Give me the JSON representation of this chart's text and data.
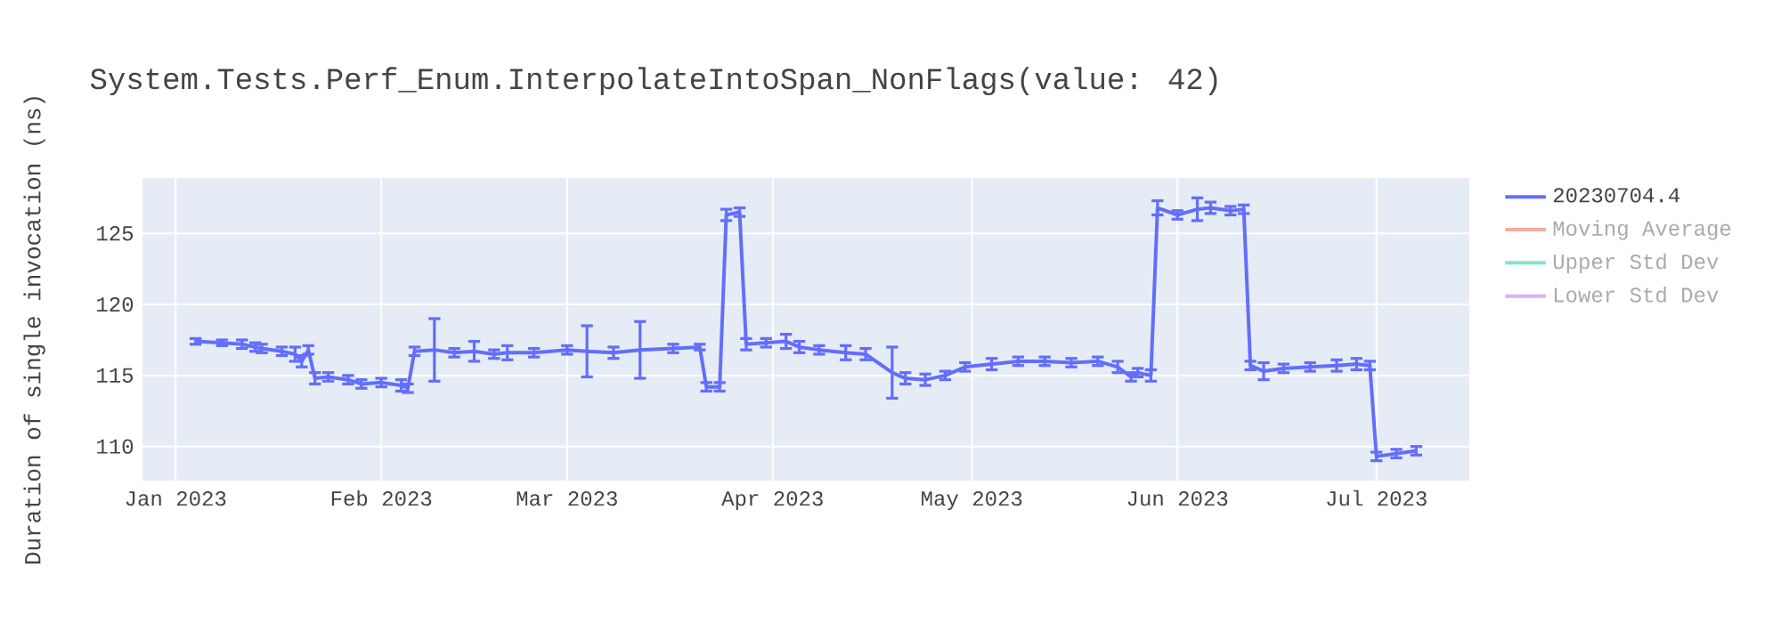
{
  "chart_data": {
    "type": "line",
    "title": "System.Tests.Perf_Enum.InterpolateIntoSpan_NonFlags(value: 42)",
    "ylabel": "Duration of single invocation (ns)",
    "x": [
      "2023-01-04",
      "2023-01-08",
      "2023-01-11",
      "2023-01-13",
      "2023-01-14",
      "2023-01-17",
      "2023-01-19",
      "2023-01-20",
      "2023-01-21",
      "2023-01-22",
      "2023-01-24",
      "2023-01-27",
      "2023-01-29",
      "2023-02-01",
      "2023-02-04",
      "2023-02-05",
      "2023-02-06",
      "2023-02-09",
      "2023-02-12",
      "2023-02-15",
      "2023-02-18",
      "2023-02-20",
      "2023-02-24",
      "2023-03-01",
      "2023-03-04",
      "2023-03-08",
      "2023-03-12",
      "2023-03-17",
      "2023-03-21",
      "2023-03-22",
      "2023-03-24",
      "2023-03-25",
      "2023-03-27",
      "2023-03-28",
      "2023-03-31",
      "2023-04-03",
      "2023-04-05",
      "2023-04-08",
      "2023-04-12",
      "2023-04-15",
      "2023-04-19",
      "2023-04-21",
      "2023-04-24",
      "2023-04-27",
      "2023-04-30",
      "2023-05-04",
      "2023-05-08",
      "2023-05-12",
      "2023-05-16",
      "2023-05-20",
      "2023-05-23",
      "2023-05-25",
      "2023-05-26",
      "2023-05-28",
      "2023-05-29",
      "2023-06-01",
      "2023-06-04",
      "2023-06-06",
      "2023-06-09",
      "2023-06-11",
      "2023-06-12",
      "2023-06-14",
      "2023-06-17",
      "2023-06-21",
      "2023-06-25",
      "2023-06-28",
      "2023-06-30",
      "2023-07-01",
      "2023-07-04",
      "2023-07-07"
    ],
    "series": [
      {
        "name": "20230704.4",
        "color": "#636efa",
        "values": [
          117.4,
          117.3,
          117.2,
          117.0,
          116.9,
          116.7,
          116.5,
          116.0,
          116.8,
          114.8,
          114.9,
          114.7,
          114.4,
          114.5,
          114.3,
          114.1,
          116.7,
          116.8,
          116.6,
          116.7,
          116.5,
          116.6,
          116.6,
          116.8,
          116.7,
          116.6,
          116.8,
          116.9,
          117.0,
          114.2,
          114.2,
          126.3,
          126.5,
          117.2,
          117.3,
          117.4,
          117.0,
          116.8,
          116.6,
          116.5,
          115.2,
          114.8,
          114.7,
          115.0,
          115.6,
          115.8,
          116.0,
          116.0,
          115.9,
          116.0,
          115.6,
          114.9,
          115.2,
          115.0,
          126.8,
          126.3,
          126.7,
          126.8,
          126.6,
          126.7,
          115.7,
          115.3,
          115.5,
          115.6,
          115.7,
          115.8,
          115.7,
          109.3,
          109.5,
          109.7
        ],
        "errors": [
          0.2,
          0.2,
          0.3,
          0.3,
          0.3,
          0.3,
          0.5,
          0.4,
          0.3,
          0.4,
          0.3,
          0.3,
          0.3,
          0.3,
          0.4,
          0.3,
          0.3,
          2.2,
          0.3,
          0.7,
          0.3,
          0.5,
          0.3,
          0.3,
          1.8,
          0.4,
          2.0,
          0.3,
          0.2,
          0.3,
          0.3,
          0.4,
          0.3,
          0.4,
          0.3,
          0.5,
          0.4,
          0.3,
          0.5,
          0.4,
          1.8,
          0.4,
          0.4,
          0.3,
          0.3,
          0.4,
          0.3,
          0.3,
          0.3,
          0.3,
          0.4,
          0.3,
          0.3,
          0.4,
          0.5,
          0.3,
          0.8,
          0.4,
          0.3,
          0.3,
          0.3,
          0.6,
          0.3,
          0.3,
          0.4,
          0.4,
          0.3,
          0.3,
          0.3,
          0.3
        ]
      },
      {
        "name": "Moving Average",
        "color": "#f7aa9d",
        "values": [
          null,
          null,
          null,
          null,
          null,
          null,
          null,
          null,
          null,
          null,
          null,
          null,
          null,
          null,
          null,
          null,
          null,
          null,
          null,
          null,
          null,
          null,
          null,
          null,
          null,
          null,
          null,
          null,
          null,
          null,
          null,
          null,
          null,
          null,
          null,
          null,
          null,
          null,
          null,
          null,
          null,
          null,
          null,
          null,
          null,
          null,
          null,
          null,
          null,
          null,
          null,
          null,
          null,
          null,
          null,
          null,
          null,
          null,
          null,
          null,
          null,
          null,
          null,
          null,
          null,
          null,
          null,
          null,
          null,
          null
        ]
      },
      {
        "name": "Upper Std Dev",
        "color": "#80e5cb",
        "values": [
          null,
          null,
          null,
          null,
          null,
          null,
          null,
          null,
          null,
          null,
          null,
          null,
          null,
          null,
          null,
          null,
          null,
          null,
          null,
          null,
          null,
          null,
          null,
          null,
          null,
          null,
          null,
          null,
          null,
          null,
          null,
          null,
          null,
          null,
          null,
          null,
          null,
          null,
          null,
          null,
          null,
          null,
          null,
          null,
          null,
          null,
          null,
          null,
          null,
          null,
          null,
          null,
          null,
          null,
          null,
          null,
          null,
          null,
          null,
          null,
          null,
          null,
          null,
          null,
          null,
          null,
          null,
          null,
          null,
          null
        ]
      },
      {
        "name": "Lower Std Dev",
        "color": "#d5b1fc",
        "values": [
          null,
          null,
          null,
          null,
          null,
          null,
          null,
          null,
          null,
          null,
          null,
          null,
          null,
          null,
          null,
          null,
          null,
          null,
          null,
          null,
          null,
          null,
          null,
          null,
          null,
          null,
          null,
          null,
          null,
          null,
          null,
          null,
          null,
          null,
          null,
          null,
          null,
          null,
          null,
          null,
          null,
          null,
          null,
          null,
          null,
          null,
          null,
          null,
          null,
          null,
          null,
          null,
          null,
          null,
          null,
          null,
          null,
          null,
          null,
          null,
          null,
          null,
          null,
          null,
          null,
          null,
          null,
          null,
          null,
          null
        ]
      }
    ],
    "xlim": [
      "2022-12-27",
      "2023-07-15"
    ],
    "xticks": [
      {
        "value": "2023-01-01",
        "label": "Jan 2023"
      },
      {
        "value": "2023-02-01",
        "label": "Feb 2023"
      },
      {
        "value": "2023-03-01",
        "label": "Mar 2023"
      },
      {
        "value": "2023-04-01",
        "label": "Apr 2023"
      },
      {
        "value": "2023-05-01",
        "label": "May 2023"
      },
      {
        "value": "2023-06-01",
        "label": "Jun 2023"
      },
      {
        "value": "2023-07-01",
        "label": "Jul 2023"
      }
    ],
    "ylim": [
      107.6,
      128.9
    ],
    "yticks": [
      110,
      115,
      120,
      125
    ],
    "grid": true,
    "legend": "right",
    "marker": "none",
    "line_style": "solid"
  }
}
